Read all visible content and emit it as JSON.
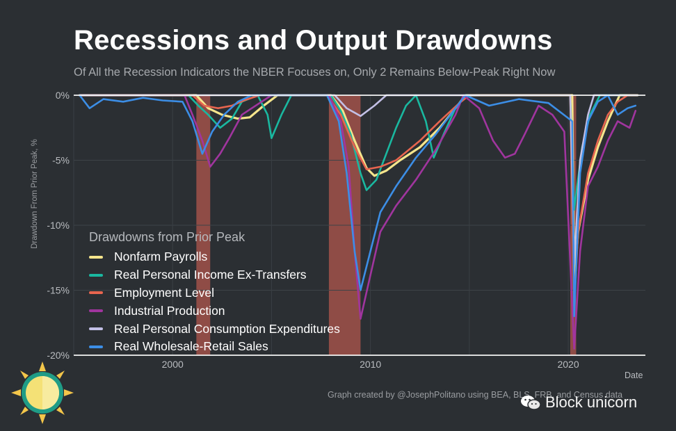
{
  "title": "Recessions and Output Drawdowns",
  "subtitle": "Of All the Recession Indicators the NBER Focuses on, Only 2 Remains Below-Peak Right Now",
  "caption": "Graph created by @JosephPolitano using BEA, BLS, FRB, and Census data",
  "watermark": "Block unicorn",
  "chart_data": {
    "type": "line",
    "xlabel": "Date",
    "ylabel": "Drawdown From Prior Peak, %",
    "xlim": [
      1995.0,
      2023.9
    ],
    "ylim": [
      -20,
      0
    ],
    "x_ticks": [
      2000,
      2010,
      2020
    ],
    "x_tick_labels": [
      "2000",
      "2010",
      "2020"
    ],
    "y_ticks": [
      0,
      -5,
      -10,
      -15,
      -20
    ],
    "y_tick_labels": [
      "0%",
      "-5%",
      "-10%",
      "-15%",
      "-20%"
    ],
    "grid": true,
    "legend_title": "Drawdowns from Prior Peak",
    "legend_position": "bottom-left",
    "recessions": [
      [
        2001.2,
        2001.9
      ],
      [
        2007.9,
        2009.5
      ],
      [
        2020.1,
        2020.4
      ]
    ],
    "recession_color": "#b6574e",
    "series": [
      {
        "name": "Nonfarm Payrolls",
        "color": "#f5e58c",
        "points": [
          [
            1995.3,
            0
          ],
          [
            2001.2,
            0
          ],
          [
            2001.8,
            -1.0
          ],
          [
            2002.5,
            -1.5
          ],
          [
            2003.3,
            -1.8
          ],
          [
            2003.9,
            -1.7
          ],
          [
            2004.6,
            -0.8
          ],
          [
            2005.3,
            0
          ],
          [
            2008.0,
            0
          ],
          [
            2008.6,
            -1.2
          ],
          [
            2009.2,
            -3.5
          ],
          [
            2009.8,
            -5.6
          ],
          [
            2010.2,
            -6.2
          ],
          [
            2010.8,
            -5.8
          ],
          [
            2011.5,
            -5.0
          ],
          [
            2012.5,
            -4.0
          ],
          [
            2013.5,
            -2.5
          ],
          [
            2014.2,
            -1.2
          ],
          [
            2014.8,
            0
          ],
          [
            2020.2,
            0
          ],
          [
            2020.3,
            -14.5
          ],
          [
            2020.5,
            -10.5
          ],
          [
            2021.0,
            -6.5
          ],
          [
            2021.5,
            -4.0
          ],
          [
            2022.0,
            -2.0
          ],
          [
            2022.6,
            0
          ],
          [
            2023.5,
            0
          ]
        ]
      },
      {
        "name": "Real Personal Income Ex-Transfers",
        "color": "#1ab8a0",
        "points": [
          [
            1995.3,
            0
          ],
          [
            2000.8,
            0
          ],
          [
            2001.3,
            -0.8
          ],
          [
            2001.8,
            -1.5
          ],
          [
            2002.4,
            -2.5
          ],
          [
            2003.0,
            -1.8
          ],
          [
            2003.5,
            -0.5
          ],
          [
            2004.3,
            0
          ],
          [
            2004.8,
            -1.5
          ],
          [
            2005.0,
            -3.3
          ],
          [
            2005.5,
            -1.5
          ],
          [
            2006.0,
            0
          ],
          [
            2008.0,
            0
          ],
          [
            2008.5,
            -1.2
          ],
          [
            2009.0,
            -3.0
          ],
          [
            2009.5,
            -6.0
          ],
          [
            2009.8,
            -7.3
          ],
          [
            2010.3,
            -6.5
          ],
          [
            2010.8,
            -4.5
          ],
          [
            2011.3,
            -2.5
          ],
          [
            2011.8,
            -0.8
          ],
          [
            2012.3,
            0
          ],
          [
            2012.8,
            -2.0
          ],
          [
            2013.2,
            -4.8
          ],
          [
            2013.7,
            -3.0
          ],
          [
            2014.3,
            -1.0
          ],
          [
            2014.8,
            0
          ],
          [
            2020.1,
            0
          ],
          [
            2020.3,
            -8.8
          ],
          [
            2020.7,
            -4.0
          ],
          [
            2021.1,
            -1.5
          ],
          [
            2021.6,
            0
          ],
          [
            2023.5,
            0
          ]
        ]
      },
      {
        "name": "Employment Level",
        "color": "#e8654f",
        "points": [
          [
            1995.3,
            0
          ],
          [
            2001.0,
            0
          ],
          [
            2001.6,
            -0.8
          ],
          [
            2002.3,
            -1.0
          ],
          [
            2003.0,
            -0.8
          ],
          [
            2003.6,
            -0.4
          ],
          [
            2004.4,
            0
          ],
          [
            2007.8,
            0
          ],
          [
            2008.5,
            -1.5
          ],
          [
            2009.2,
            -4.0
          ],
          [
            2009.8,
            -5.7
          ],
          [
            2010.5,
            -5.5
          ],
          [
            2011.3,
            -5.0
          ],
          [
            2012.5,
            -3.5
          ],
          [
            2013.5,
            -2.0
          ],
          [
            2014.5,
            -0.6
          ],
          [
            2015.0,
            0
          ],
          [
            2020.1,
            0
          ],
          [
            2020.3,
            -16.2
          ],
          [
            2020.5,
            -10.5
          ],
          [
            2021.0,
            -6.0
          ],
          [
            2021.5,
            -3.5
          ],
          [
            2022.0,
            -1.5
          ],
          [
            2022.5,
            -0.5
          ],
          [
            2023.0,
            0
          ],
          [
            2023.5,
            0
          ]
        ]
      },
      {
        "name": "Industrial Production",
        "color": "#a0359e",
        "points": [
          [
            1995.3,
            0
          ],
          [
            2000.6,
            0
          ],
          [
            2001.0,
            -1.5
          ],
          [
            2001.5,
            -3.5
          ],
          [
            2001.9,
            -5.5
          ],
          [
            2002.4,
            -4.5
          ],
          [
            2002.9,
            -3.2
          ],
          [
            2003.5,
            -1.5
          ],
          [
            2004.5,
            -0.5
          ],
          [
            2005.0,
            0
          ],
          [
            2007.9,
            0
          ],
          [
            2008.5,
            -2.0
          ],
          [
            2008.9,
            -5.5
          ],
          [
            2009.2,
            -12.0
          ],
          [
            2009.5,
            -17.2
          ],
          [
            2009.9,
            -14.5
          ],
          [
            2010.5,
            -10.5
          ],
          [
            2011.3,
            -8.5
          ],
          [
            2012.3,
            -6.5
          ],
          [
            2013.3,
            -4.2
          ],
          [
            2014.3,
            -1.5
          ],
          [
            2014.7,
            0
          ],
          [
            2015.5,
            -1.0
          ],
          [
            2016.2,
            -3.5
          ],
          [
            2016.8,
            -4.8
          ],
          [
            2017.3,
            -4.5
          ],
          [
            2017.8,
            -3.0
          ],
          [
            2018.5,
            -0.8
          ],
          [
            2019.2,
            -1.5
          ],
          [
            2019.8,
            -2.8
          ],
          [
            2020.3,
            -19.5
          ],
          [
            2020.6,
            -12.0
          ],
          [
            2021.0,
            -7.0
          ],
          [
            2021.5,
            -5.5
          ],
          [
            2022.0,
            -3.5
          ],
          [
            2022.5,
            -2.0
          ],
          [
            2023.1,
            -2.5
          ],
          [
            2023.4,
            -1.2
          ]
        ]
      },
      {
        "name": "Real Personal Consumption Expenditures",
        "color": "#c3c0e6",
        "points": [
          [
            1995.3,
            0
          ],
          [
            2008.2,
            0
          ],
          [
            2008.8,
            -1.0
          ],
          [
            2009.5,
            -1.6
          ],
          [
            2010.2,
            -0.8
          ],
          [
            2010.8,
            0
          ],
          [
            2020.1,
            0
          ],
          [
            2020.3,
            -13.0
          ],
          [
            2020.6,
            -5.0
          ],
          [
            2021.0,
            -1.5
          ],
          [
            2021.3,
            0
          ],
          [
            2023.5,
            0
          ]
        ]
      },
      {
        "name": "Real Wholesale-Retail Sales",
        "color": "#3c8ee6",
        "points": [
          [
            1995.3,
            0
          ],
          [
            1995.8,
            -1.0
          ],
          [
            1996.5,
            -0.3
          ],
          [
            1997.5,
            -0.5
          ],
          [
            1998.5,
            -0.2
          ],
          [
            1999.5,
            -0.4
          ],
          [
            2000.5,
            -0.5
          ],
          [
            2001.0,
            -2.0
          ],
          [
            2001.5,
            -4.5
          ],
          [
            2002.0,
            -2.8
          ],
          [
            2002.6,
            -1.5
          ],
          [
            2003.3,
            -0.5
          ],
          [
            2004.0,
            0
          ],
          [
            2007.8,
            0
          ],
          [
            2008.4,
            -2.0
          ],
          [
            2008.8,
            -6.0
          ],
          [
            2009.2,
            -12.0
          ],
          [
            2009.5,
            -15.0
          ],
          [
            2010.0,
            -12.0
          ],
          [
            2010.5,
            -9.0
          ],
          [
            2011.3,
            -7.0
          ],
          [
            2012.3,
            -4.8
          ],
          [
            2013.3,
            -3.0
          ],
          [
            2014.3,
            -1.0
          ],
          [
            2014.8,
            0
          ],
          [
            2016.0,
            -0.8
          ],
          [
            2017.5,
            -0.3
          ],
          [
            2019.0,
            -0.6
          ],
          [
            2020.2,
            -2.0
          ],
          [
            2020.3,
            -17.0
          ],
          [
            2020.6,
            -6.0
          ],
          [
            2021.0,
            -2.0
          ],
          [
            2021.5,
            -0.5
          ],
          [
            2022.0,
            0
          ],
          [
            2022.5,
            -1.5
          ],
          [
            2023.0,
            -1.0
          ],
          [
            2023.4,
            -0.8
          ]
        ]
      }
    ]
  }
}
